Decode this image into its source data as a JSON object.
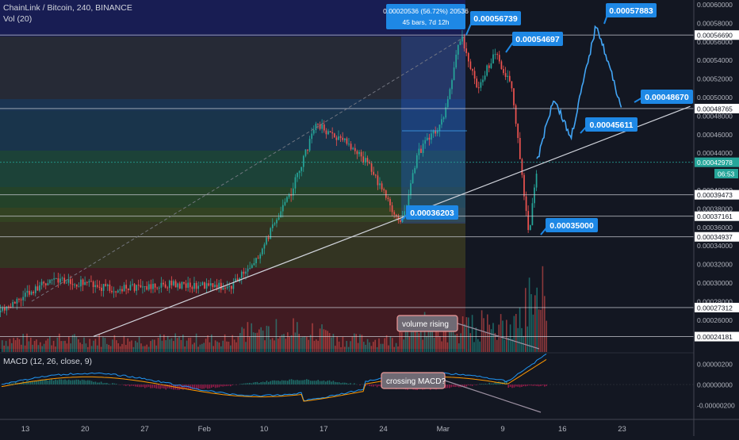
{
  "header": {
    "symbol_line": "ChainLink / Bitcoin, 240, BINANCE",
    "volume_label": "Vol (20)",
    "macd_label": "MACD (12, 26, close, 9)"
  },
  "colors": {
    "background": "#131722",
    "up": "#26a69a",
    "down": "#ef5350",
    "callout": "#1e88e5",
    "macd_line": "#2196f3",
    "signal_line": "#ff9800",
    "trendline": "#d1d4dc",
    "projection": "#42a5f5"
  },
  "price_axis_ticks": [
    "0.00060000",
    "0.00058000",
    "0.00056000",
    "0.00054000",
    "0.00052000",
    "0.00050000",
    "0.00048000",
    "0.00046000",
    "0.00044000",
    "0.00040000",
    "0.00038000",
    "0.00036000",
    "0.00034000",
    "0.00032000",
    "0.00030000",
    "0.00028000",
    "0.00026000"
  ],
  "price_axis_badges": [
    {
      "text": "0.00056690",
      "value": 0.0005669,
      "type": "level"
    },
    {
      "text": "0.00048765",
      "value": 0.00048765,
      "type": "level"
    },
    {
      "text": "0.00042978",
      "value": 0.00042978,
      "type": "current"
    },
    {
      "text": "06:53",
      "value": 0.0004175,
      "type": "timer"
    },
    {
      "text": "0.00039473",
      "value": 0.00039473,
      "type": "level"
    },
    {
      "text": "0.00037161",
      "value": 0.00037161,
      "type": "level"
    },
    {
      "text": "0.00034937",
      "value": 0.00034937,
      "type": "level"
    },
    {
      "text": "0.00027312",
      "value": 0.00027312,
      "type": "level"
    },
    {
      "text": "0.00024181",
      "value": 0.00024181,
      "type": "level"
    }
  ],
  "macd_axis_ticks": [
    "0.00000200",
    "0.00000000",
    "-0.00000200"
  ],
  "date_axis_ticks": [
    "13",
    "20",
    "27",
    "Feb",
    "10",
    "17",
    "24",
    "Mar",
    "9",
    "16",
    "23"
  ],
  "measure_box": {
    "line1": "0.00020536 (56.72%) 20536",
    "line2": "45 bars, 7d 12h"
  },
  "price_callouts": [
    "0.00056739",
    "0.00054697",
    "0.00057883",
    "0.00048670",
    "0.00045611",
    "0.00036203",
    "0.00035000"
  ],
  "annotations": {
    "volume_note": "volume rising",
    "macd_note": "crossing MACD?"
  },
  "chart_data": {
    "type": "candlestick",
    "title": "ChainLink / Bitcoin, 240, BINANCE",
    "xlabel": "",
    "ylabel": "",
    "ylim": [
      0.00023,
      0.0006
    ],
    "key_points": [
      {
        "x": "Jan 10",
        "y": 0.000268
      },
      {
        "x": "Jan 16",
        "y": 0.000305
      },
      {
        "x": "Jan 23",
        "y": 0.000293
      },
      {
        "x": "Jan 30",
        "y": 0.000298
      },
      {
        "x": "Feb 6",
        "y": 0.000296
      },
      {
        "x": "Feb 9",
        "y": 0.000325
      },
      {
        "x": "Feb 13",
        "y": 0.000395
      },
      {
        "x": "Feb 16",
        "y": 0.00047
      },
      {
        "x": "Feb 19",
        "y": 0.000455
      },
      {
        "x": "Feb 22",
        "y": 0.00043
      },
      {
        "x": "Feb 26",
        "y": 0.000362
      },
      {
        "x": "Feb 28",
        "y": 0.00044
      },
      {
        "x": "Mar 2",
        "y": 0.000475
      },
      {
        "x": "Mar 4",
        "y": 0.000567
      },
      {
        "x": "Mar 6",
        "y": 0.00051
      },
      {
        "x": "Mar 8",
        "y": 0.000547
      },
      {
        "x": "Mar 10",
        "y": 0.00051
      },
      {
        "x": "Mar 12",
        "y": 0.00035
      },
      {
        "x": "Mar 13",
        "y": 0.00043
      }
    ],
    "projection_path": [
      {
        "x": "Mar 13",
        "y": 0.00043
      },
      {
        "x": "Mar 15",
        "y": 0.0005
      },
      {
        "x": "Mar 17",
        "y": 0.000456
      },
      {
        "x": "Mar 20",
        "y": 0.000579
      },
      {
        "x": "Mar 23",
        "y": 0.000487
      }
    ],
    "horizontal_levels": [
      0.0005669,
      0.00048765,
      0.00042978,
      0.00039473,
      0.00037161,
      0.00034937,
      0.00027312,
      0.00024181
    ],
    "trendline": [
      {
        "x": "Jan 21",
        "y": 0.000242
      },
      {
        "x": "Mar 31",
        "y": 0.00049
      }
    ],
    "legend": "none",
    "grid": false
  }
}
